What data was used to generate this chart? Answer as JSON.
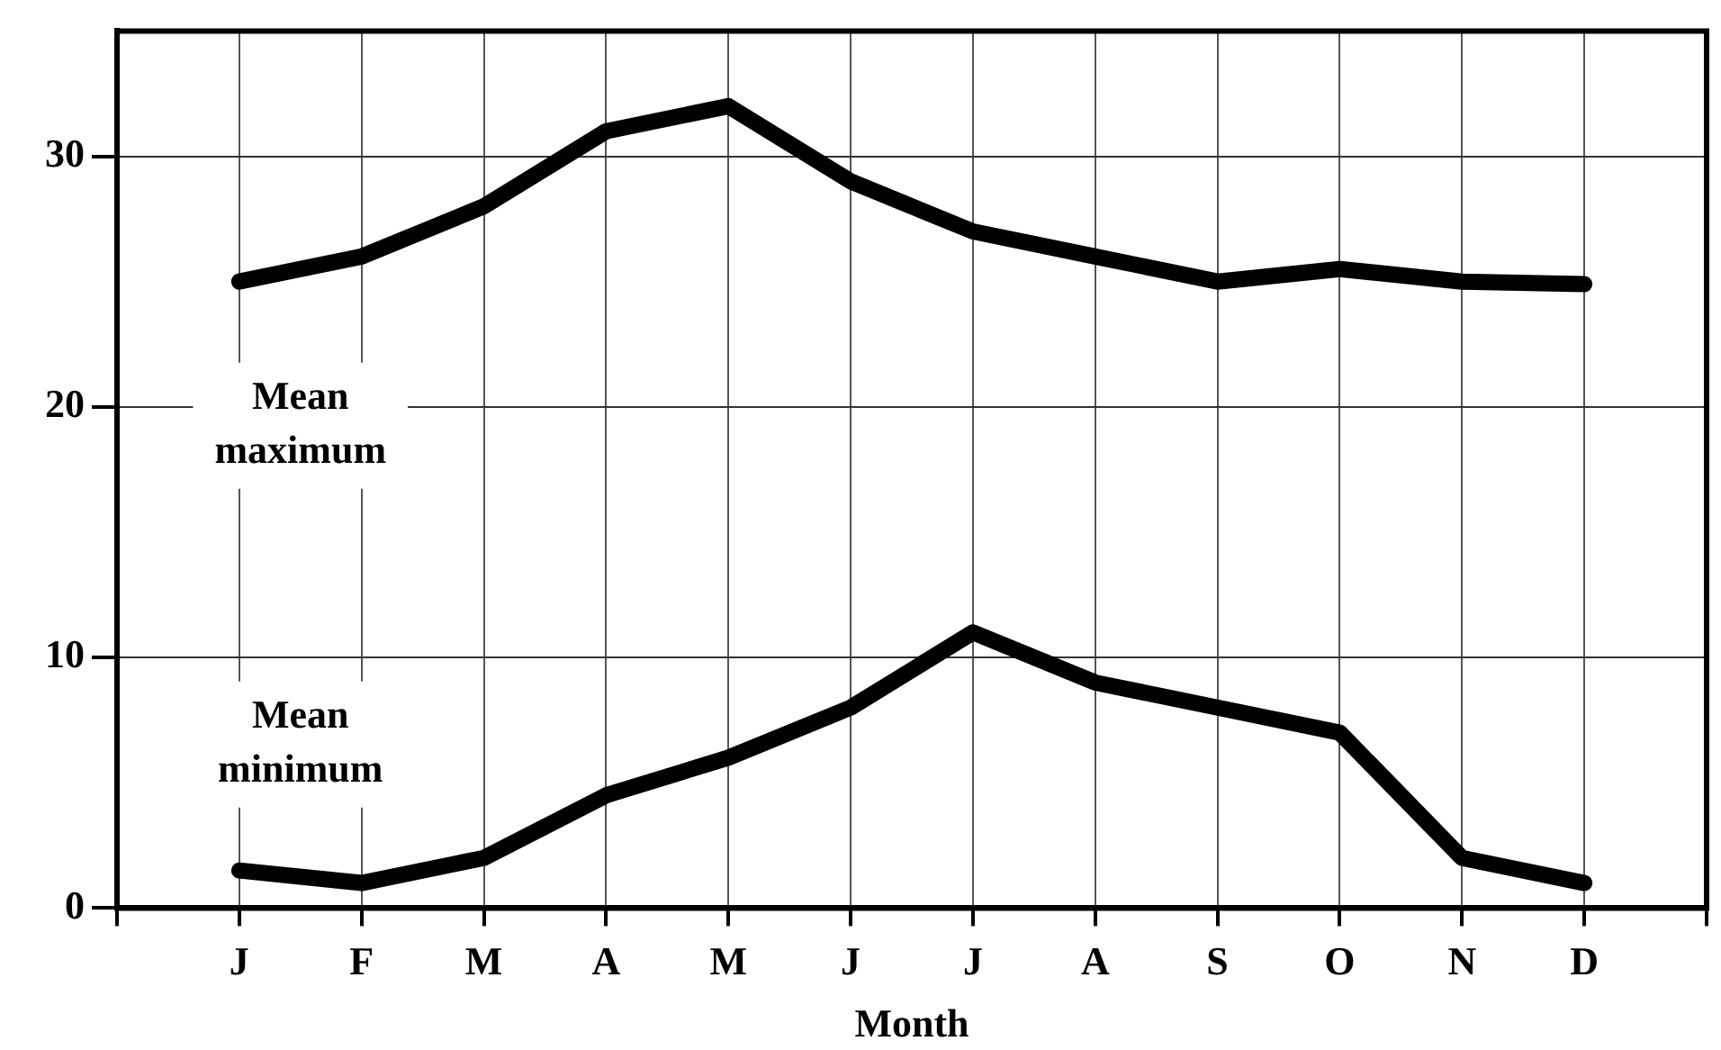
{
  "chart_data": {
    "type": "line",
    "xlabel": "Month",
    "categories": [
      "J",
      "F",
      "M",
      "A",
      "M",
      "J",
      "J",
      "A",
      "S",
      "O",
      "N",
      "D"
    ],
    "series": [
      {
        "name": "Mean maximum",
        "color": "#000000",
        "values": [
          25,
          26,
          28,
          31,
          32,
          29,
          27,
          26,
          25,
          25.5,
          25,
          24.9
        ]
      },
      {
        "name": "Mean minimum",
        "color": "#000000",
        "values": [
          1.5,
          1,
          2,
          4.5,
          6,
          8,
          11,
          9,
          8,
          7,
          2,
          1
        ]
      }
    ],
    "ylim": [
      0,
      35
    ],
    "yticks": [
      0,
      10,
      20,
      30
    ],
    "grid": true,
    "legend": false,
    "marker": "none",
    "line_style": "solid"
  }
}
